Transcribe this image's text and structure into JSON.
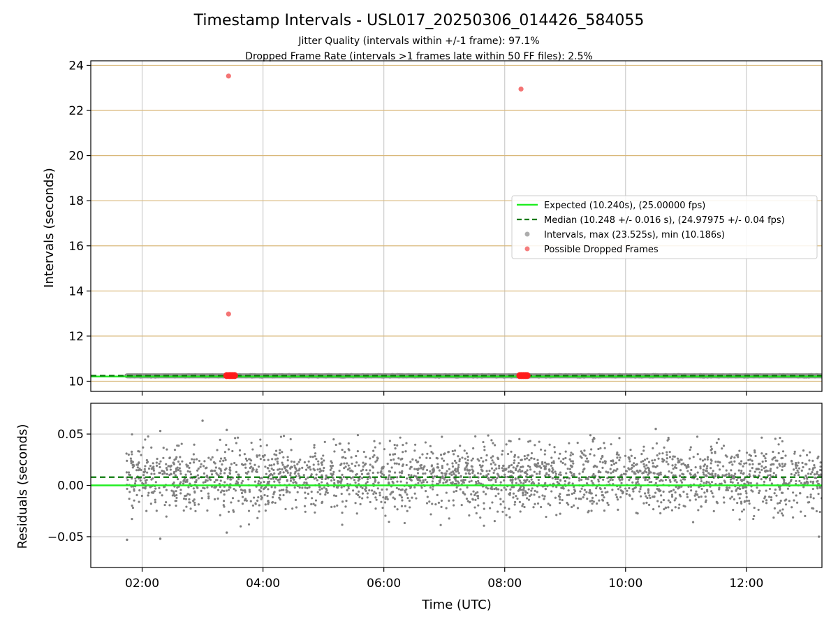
{
  "chart_data": {
    "type": "scatter",
    "title": "Timestamp Intervals - USL017_20250306_014426_584055",
    "subtitle_lines": [
      "Jitter Quality (intervals within +/-1 frame): 97.1%",
      "Dropped Frame Rate (intervals >1 frames late within 50 FF files): 2.5%"
    ],
    "xlabel": "Time (UTC)",
    "x_ticks": [
      "02:00",
      "04:00",
      "06:00",
      "08:00",
      "10:00",
      "12:00"
    ],
    "x_tick_hours": [
      2,
      4,
      6,
      8,
      10,
      12
    ],
    "x_range_hours": [
      1.15,
      13.25
    ],
    "series_start_hour": 1.74,
    "series_end_hour": 13.25,
    "grid": true,
    "panels": [
      {
        "name": "intervals",
        "ylabel": "Intervals (seconds)",
        "ylim": [
          9.55,
          24.2
        ],
        "y_ticks": [
          "10",
          "12",
          "14",
          "16",
          "18",
          "20",
          "22",
          "24"
        ],
        "y_tick_values": [
          10,
          12,
          14,
          16,
          18,
          20,
          22,
          24
        ],
        "horizontal_reference_lines": [
          10,
          12,
          14,
          16,
          18,
          20,
          22,
          24
        ],
        "reference_line_color": "#d9b87a",
        "expected_value": 10.24,
        "median_value": 10.248,
        "intervals_band": [
          10.19,
          10.29
        ],
        "dropped_frame_points": [
          {
            "hour": 3.43,
            "value": 23.525
          },
          {
            "hour": 8.27,
            "value": 22.95
          },
          {
            "hour": 3.43,
            "value": 12.98
          },
          {
            "hour": 3.4,
            "value": 10.25
          },
          {
            "hour": 3.44,
            "value": 10.25
          },
          {
            "hour": 3.47,
            "value": 10.25
          },
          {
            "hour": 3.5,
            "value": 10.25
          },
          {
            "hour": 3.53,
            "value": 10.25
          },
          {
            "hour": 8.25,
            "value": 10.25
          },
          {
            "hour": 8.28,
            "value": 10.25
          },
          {
            "hour": 8.31,
            "value": 10.25
          },
          {
            "hour": 8.34,
            "value": 10.25
          },
          {
            "hour": 8.37,
            "value": 10.25
          }
        ],
        "legend_position": "center-right",
        "legend": [
          {
            "label": "Expected (10.240s), (25.00000 fps)",
            "style": "solid-line",
            "color": "#22ee22"
          },
          {
            "label": "Median (10.248 +/- 0.016 s), (24.97975 +/- 0.04 fps)",
            "style": "dashed-line",
            "color": "#0a7a0a"
          },
          {
            "label": "Intervals, max (23.525s), min (10.186s)",
            "style": "marker",
            "color": "#999999"
          },
          {
            "label": "Possible Dropped Frames",
            "style": "marker",
            "color": "#f25c5c"
          }
        ]
      },
      {
        "name": "residuals",
        "ylabel": "Residuals (seconds)",
        "ylim": [
          -0.08,
          0.08
        ],
        "y_ticks": [
          "0.05",
          "0.00",
          "−0.05"
        ],
        "y_tick_values": [
          0.05,
          0.0,
          -0.05
        ],
        "expected_value": 0.0,
        "median_value": 0.008,
        "residual_center": 0.008,
        "residual_spread": 0.016,
        "residual_outliers": [
          {
            "hour": 3.0,
            "value": 0.063
          },
          {
            "hour": 2.3,
            "value": 0.053
          },
          {
            "hour": 3.4,
            "value": 0.054
          },
          {
            "hour": 10.5,
            "value": 0.055
          },
          {
            "hour": 1.75,
            "value": -0.053
          },
          {
            "hour": 2.3,
            "value": -0.052
          },
          {
            "hour": 3.4,
            "value": -0.046
          },
          {
            "hour": 13.2,
            "value": -0.05
          }
        ]
      }
    ],
    "colors": {
      "expected": "#22ee22",
      "median": "#0a7a0a",
      "intervals": "#808080",
      "dropped": "#f25c5c",
      "grid": "#cccccc"
    }
  }
}
